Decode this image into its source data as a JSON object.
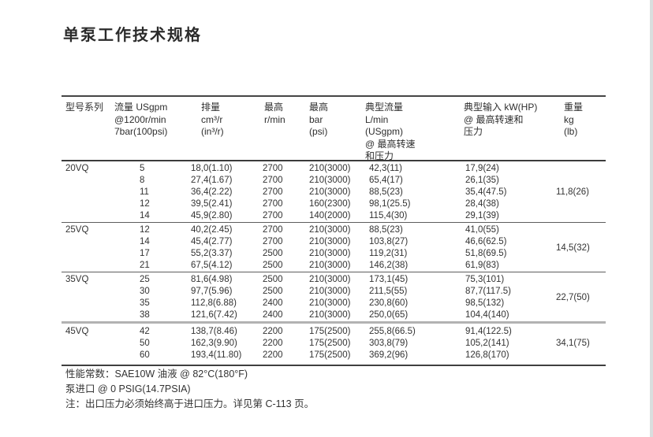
{
  "title": "单泵工作技术规格",
  "table": {
    "columns": [
      {
        "name": "model-series",
        "lines": [
          "型号系列"
        ]
      },
      {
        "name": "flow",
        "lines": [
          "流量 USgpm",
          "@1200r/min",
          "7bar(100psi)"
        ]
      },
      {
        "name": "displacement",
        "lines": [
          "排量",
          "cm³/r",
          "(in³/r)"
        ]
      },
      {
        "name": "max-speed",
        "lines": [
          "最高",
          "r/min"
        ]
      },
      {
        "name": "max-pressure",
        "lines": [
          "最高",
          "bar",
          "(psi)"
        ]
      },
      {
        "name": "typical-flow",
        "lines": [
          "典型流量",
          "L/min",
          "(USgpm)",
          "@ 最高转速",
          "和压力"
        ]
      },
      {
        "name": "typical-input",
        "lines": [
          "典型输入 kW(HP)",
          "@ 最高转速和",
          "压力"
        ]
      },
      {
        "name": "weight",
        "lines": [
          "重量",
          "kg",
          "(lb)"
        ]
      }
    ],
    "groups": [
      {
        "model": "20VQ",
        "weight": "11,8(26)",
        "rows": [
          [
            "5",
            "18,0(1.10)",
            "2700",
            "210(3000)",
            "42,3(11)",
            "17,9(24)"
          ],
          [
            "8",
            "27,4(1.67)",
            "2700",
            "210(3000)",
            "65,4(17)",
            "26,1(35)"
          ],
          [
            "11",
            "36,4(2.22)",
            "2700",
            "210(3000)",
            "88,5(23)",
            "35,4(47.5)"
          ],
          [
            "12",
            "39,5(2.41)",
            "2700",
            "160(2300)",
            "98,1(25.5)",
            "28,4(38)"
          ],
          [
            "14",
            "45,9(2.80)",
            "2700",
            "140(2000)",
            "115,4(30)",
            "29,1(39)"
          ]
        ]
      },
      {
        "model": "25VQ",
        "weight": "14,5(32)",
        "rows": [
          [
            "12",
            "40,2(2.45)",
            "2700",
            "210(3000)",
            "88,5(23)",
            "41,0(55)"
          ],
          [
            "14",
            "45,4(2.77)",
            "2700",
            "210(3000)",
            "103,8(27)",
            "46,6(62.5)"
          ],
          [
            "17",
            "55,2(3.37)",
            "2500",
            "210(3000)",
            "119,2(31)",
            "51,8(69.5)"
          ],
          [
            "21",
            "67,5(4.12)",
            "2500",
            "210(3000)",
            "146,2(38)",
            "61,9(83)"
          ]
        ]
      },
      {
        "model": "35VQ",
        "weight": "22,7(50)",
        "rows": [
          [
            "25",
            "81,6(4.98)",
            "2500",
            "210(3000)",
            "173,1(45)",
            "75,3(101)"
          ],
          [
            "30",
            "97,7(5.96)",
            "2500",
            "210(3000)",
            "211,5(55)",
            "87,7(117.5)"
          ],
          [
            "35",
            "112,8(6.88)",
            "2400",
            "210(3000)",
            "230,8(60)",
            "98,5(132)"
          ],
          [
            "38",
            "121,6(7.42)",
            "2400",
            "210(3000)",
            "250,0(65)",
            "104,4(140)"
          ]
        ]
      },
      {
        "model": "45VQ",
        "weight": "34,1(75)",
        "rows": [
          [
            "42",
            "138,7(8.46)",
            "2200",
            "175(2500)",
            "255,8(66.5)",
            "91,4(122.5)"
          ],
          [
            "50",
            "162,3(9.90)",
            "2200",
            "175(2500)",
            "303,8(79)",
            "105,2(141)"
          ],
          [
            "60",
            "193,4(11.80)",
            "2200",
            "175(2500)",
            "369,2(96)",
            "126,8(170)"
          ]
        ]
      }
    ]
  },
  "notes": [
    "性能常数：SAE10W 油液 @ 82°C(180°F)",
    "泵进口 @ 0 PSIG(14.7PSIA)",
    "注：出口压力必须始终高于进口压力。详见第 C-113 页。"
  ]
}
